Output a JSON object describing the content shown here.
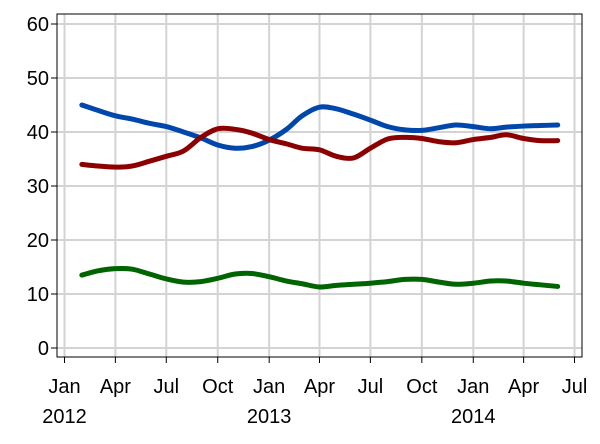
{
  "chart_data": {
    "type": "line",
    "title": "",
    "xlabel": "",
    "ylabel": "",
    "xlim": [
      "2012-01-01",
      "2014-07-01"
    ],
    "ylim": [
      0,
      60
    ],
    "grid": true,
    "x_ticks": [
      {
        "date": "2012-01-01",
        "label": "Jan",
        "year": "2012"
      },
      {
        "date": "2012-04-01",
        "label": "Apr",
        "year": ""
      },
      {
        "date": "2012-07-01",
        "label": "Jul",
        "year": ""
      },
      {
        "date": "2012-10-01",
        "label": "Oct",
        "year": ""
      },
      {
        "date": "2013-01-01",
        "label": "Jan",
        "year": "2013"
      },
      {
        "date": "2013-04-01",
        "label": "Apr",
        "year": ""
      },
      {
        "date": "2013-07-01",
        "label": "Jul",
        "year": ""
      },
      {
        "date": "2013-10-01",
        "label": "Oct",
        "year": ""
      },
      {
        "date": "2014-01-01",
        "label": "Jan",
        "year": "2014"
      },
      {
        "date": "2014-04-01",
        "label": "Apr",
        "year": ""
      },
      {
        "date": "2014-07-01",
        "label": "Jul",
        "year": ""
      }
    ],
    "y_ticks": [
      0,
      10,
      20,
      30,
      40,
      50,
      60
    ],
    "series": [
      {
        "color": "#0047ab",
        "points": [
          {
            "x": "2012-02-01",
            "y": 45.0
          },
          {
            "x": "2012-03-01",
            "y": 44.0
          },
          {
            "x": "2012-04-01",
            "y": 43.0
          },
          {
            "x": "2012-05-01",
            "y": 42.4
          },
          {
            "x": "2012-06-01",
            "y": 41.6
          },
          {
            "x": "2012-07-01",
            "y": 41.0
          },
          {
            "x": "2012-08-01",
            "y": 40.0
          },
          {
            "x": "2012-09-01",
            "y": 38.9
          },
          {
            "x": "2012-10-01",
            "y": 37.6
          },
          {
            "x": "2012-11-01",
            "y": 37.0
          },
          {
            "x": "2012-12-01",
            "y": 37.3
          },
          {
            "x": "2013-01-01",
            "y": 38.5
          },
          {
            "x": "2013-02-01",
            "y": 40.5
          },
          {
            "x": "2013-03-01",
            "y": 43.0
          },
          {
            "x": "2013-04-01",
            "y": 44.6
          },
          {
            "x": "2013-05-01",
            "y": 44.3
          },
          {
            "x": "2013-06-01",
            "y": 43.3
          },
          {
            "x": "2013-07-01",
            "y": 42.2
          },
          {
            "x": "2013-08-01",
            "y": 41.0
          },
          {
            "x": "2013-09-01",
            "y": 40.4
          },
          {
            "x": "2013-10-01",
            "y": 40.3
          },
          {
            "x": "2013-11-01",
            "y": 40.8
          },
          {
            "x": "2013-12-01",
            "y": 41.3
          },
          {
            "x": "2014-01-01",
            "y": 41.0
          },
          {
            "x": "2014-02-01",
            "y": 40.6
          },
          {
            "x": "2014-03-01",
            "y": 40.9
          },
          {
            "x": "2014-04-01",
            "y": 41.1
          },
          {
            "x": "2014-05-01",
            "y": 41.2
          },
          {
            "x": "2014-06-01",
            "y": 41.3
          }
        ]
      },
      {
        "color": "#8b0000",
        "points": [
          {
            "x": "2012-02-01",
            "y": 34.0
          },
          {
            "x": "2012-03-01",
            "y": 33.7
          },
          {
            "x": "2012-04-01",
            "y": 33.5
          },
          {
            "x": "2012-05-01",
            "y": 33.7
          },
          {
            "x": "2012-06-01",
            "y": 34.6
          },
          {
            "x": "2012-07-01",
            "y": 35.5
          },
          {
            "x": "2012-08-01",
            "y": 36.5
          },
          {
            "x": "2012-09-01",
            "y": 39.0
          },
          {
            "x": "2012-10-01",
            "y": 40.6
          },
          {
            "x": "2012-11-01",
            "y": 40.5
          },
          {
            "x": "2012-12-01",
            "y": 39.8
          },
          {
            "x": "2013-01-01",
            "y": 38.6
          },
          {
            "x": "2013-02-01",
            "y": 37.8
          },
          {
            "x": "2013-03-01",
            "y": 37.0
          },
          {
            "x": "2013-04-01",
            "y": 36.7
          },
          {
            "x": "2013-05-01",
            "y": 35.5
          },
          {
            "x": "2013-06-01",
            "y": 35.2
          },
          {
            "x": "2013-07-01",
            "y": 37.0
          },
          {
            "x": "2013-08-01",
            "y": 38.7
          },
          {
            "x": "2013-09-01",
            "y": 39.0
          },
          {
            "x": "2013-10-01",
            "y": 38.8
          },
          {
            "x": "2013-11-01",
            "y": 38.2
          },
          {
            "x": "2013-12-01",
            "y": 38.0
          },
          {
            "x": "2014-01-01",
            "y": 38.6
          },
          {
            "x": "2014-02-01",
            "y": 39.0
          },
          {
            "x": "2014-03-01",
            "y": 39.5
          },
          {
            "x": "2014-04-01",
            "y": 38.8
          },
          {
            "x": "2014-05-01",
            "y": 38.4
          },
          {
            "x": "2014-06-01",
            "y": 38.4
          }
        ]
      },
      {
        "color": "#006400",
        "points": [
          {
            "x": "2012-02-01",
            "y": 13.5
          },
          {
            "x": "2012-03-01",
            "y": 14.3
          },
          {
            "x": "2012-04-01",
            "y": 14.7
          },
          {
            "x": "2012-05-01",
            "y": 14.6
          },
          {
            "x": "2012-06-01",
            "y": 13.7
          },
          {
            "x": "2012-07-01",
            "y": 12.8
          },
          {
            "x": "2012-08-01",
            "y": 12.2
          },
          {
            "x": "2012-09-01",
            "y": 12.3
          },
          {
            "x": "2012-10-01",
            "y": 12.9
          },
          {
            "x": "2012-11-01",
            "y": 13.7
          },
          {
            "x": "2012-12-01",
            "y": 13.8
          },
          {
            "x": "2013-01-01",
            "y": 13.2
          },
          {
            "x": "2013-02-01",
            "y": 12.4
          },
          {
            "x": "2013-03-01",
            "y": 11.9
          },
          {
            "x": "2013-04-01",
            "y": 11.3
          },
          {
            "x": "2013-05-01",
            "y": 11.6
          },
          {
            "x": "2013-06-01",
            "y": 11.8
          },
          {
            "x": "2013-07-01",
            "y": 12.0
          },
          {
            "x": "2013-08-01",
            "y": 12.3
          },
          {
            "x": "2013-09-01",
            "y": 12.7
          },
          {
            "x": "2013-10-01",
            "y": 12.7
          },
          {
            "x": "2013-11-01",
            "y": 12.2
          },
          {
            "x": "2013-12-01",
            "y": 11.8
          },
          {
            "x": "2014-01-01",
            "y": 12.0
          },
          {
            "x": "2014-02-01",
            "y": 12.4
          },
          {
            "x": "2014-03-01",
            "y": 12.4
          },
          {
            "x": "2014-04-01",
            "y": 12.0
          },
          {
            "x": "2014-05-01",
            "y": 11.7
          },
          {
            "x": "2014-06-01",
            "y": 11.4
          }
        ]
      }
    ]
  }
}
